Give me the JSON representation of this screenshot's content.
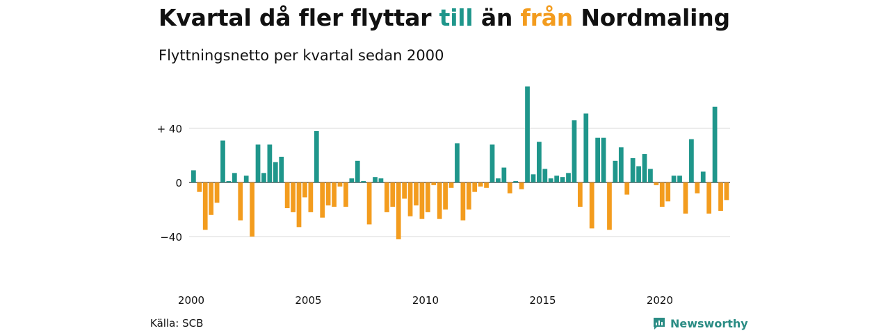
{
  "header": {
    "title_part1": "Kvartal då fler flyttar ",
    "title_till": "till",
    "title_part2": " än ",
    "title_fran": "från",
    "title_part3": " Nordmaling",
    "subtitle": "Flyttningsnetto per kvartal sedan 2000"
  },
  "footer": {
    "source": "Källa: SCB",
    "brand": "Newsworthy"
  },
  "colors": {
    "positive": "#1f968b",
    "negative": "#f39c1e",
    "brand": "#2a8c84",
    "grid": "#d9d9d9"
  },
  "chart_data": {
    "type": "bar",
    "title": "Kvartal då fler flyttar till än från Nordmaling",
    "subtitle": "Flyttningsnetto per kvartal sedan 2000",
    "x_start": "2000-Q1",
    "x_tick_labels": [
      "2000",
      "2005",
      "2010",
      "2015",
      "2020"
    ],
    "y_tick_labels": [
      "+ 40",
      "0",
      "−40"
    ],
    "y_ticks": [
      40,
      0,
      -40
    ],
    "ylim": [
      -70,
      72
    ],
    "grid": true,
    "values": [
      9,
      -7,
      -35,
      -24,
      -15,
      31,
      1,
      7,
      -28,
      5,
      -40,
      28,
      7,
      28,
      15,
      19,
      -19,
      -22,
      -33,
      -11,
      -22,
      38,
      -26,
      -17,
      -18,
      -3,
      -18,
      3,
      16,
      1,
      -31,
      4,
      3,
      -22,
      -18,
      -42,
      -12,
      -25,
      -17,
      -27,
      -22,
      -2,
      -27,
      -20,
      -4,
      29,
      -28,
      -20,
      -7,
      -3,
      -4,
      28,
      3,
      11,
      -8,
      1,
      -5,
      71,
      6,
      30,
      10,
      3,
      5,
      4,
      7,
      46,
      -18,
      51,
      -34,
      33,
      33,
      -35,
      16,
      26,
      -9,
      18,
      12,
      21,
      10,
      -2,
      -18,
      -14,
      5,
      5,
      -23,
      32,
      -8,
      8,
      -23,
      56,
      -21,
      -13
    ]
  }
}
